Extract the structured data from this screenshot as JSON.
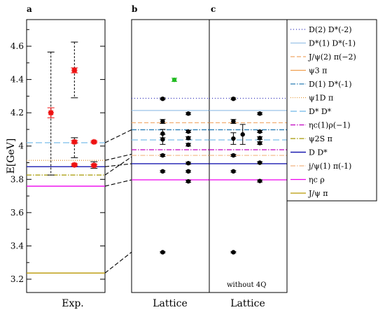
{
  "chart_data": {
    "type": "scatter",
    "ylabel": "E[GeV]",
    "ylim": [
      3.12,
      4.76
    ],
    "yticks": [
      "3.2",
      "3.4",
      "3.6",
      "3.8",
      "4",
      "4.2",
      "4.4",
      "4.6"
    ],
    "grid": false,
    "legend_position": "right",
    "panels": [
      {
        "letter": "a",
        "xlabel": "Exp.",
        "note": ""
      },
      {
        "letter": "b",
        "xlabel": "Lattice",
        "note": ""
      },
      {
        "letter": "c",
        "xlabel": "Lattice",
        "note": "without 4Q"
      }
    ],
    "thresholds": [
      {
        "label": "D(2) D*(-2)",
        "value": 4.287,
        "color": "#3333bb",
        "dash": "1,3",
        "width": 1.3,
        "panels": [
          "b",
          "c"
        ]
      },
      {
        "label": "D*(1) D*(-1)",
        "value": 4.214,
        "color": "#9cc3e8",
        "dash": "",
        "width": 1.3,
        "panels": [
          "b",
          "c"
        ]
      },
      {
        "label": "J/ψ(2) π(−2)",
        "value": 4.14,
        "color": "#f0a868",
        "dash": "6,3",
        "width": 1.2,
        "panels": [
          "b",
          "c"
        ]
      },
      {
        "label": "ψ3 π",
        "value": 4.128,
        "color": "#f0a050",
        "dash": "",
        "width": 1.3,
        "panels": []
      },
      {
        "label": "D(1) D*(-1)",
        "value": 4.098,
        "color": "#2a7db5",
        "dash": "7,2,1.5,2",
        "width": 1.3,
        "panels": [
          "b",
          "c"
        ]
      },
      {
        "label": "ψ1D π",
        "value": 3.914,
        "color": "#e39a3a",
        "dash": "1,2",
        "width": 1.3,
        "panels": [
          "a"
        ]
      },
      {
        "label": "D* D*",
        "value": 4.02,
        "color": "#87c3ec",
        "dash": "9,4",
        "width": 1.4,
        "panels": [
          "a",
          "b",
          "c"
        ]
      },
      {
        "label": "ηc(1)ρ(−1)",
        "value": 3.978,
        "color": "#c000c0",
        "dash": "7,2,1.5,2",
        "width": 1.3,
        "panels": [
          "b",
          "c"
        ]
      },
      {
        "label": "ψ2S π",
        "value": 3.826,
        "color": "#a59800",
        "dash": "7,2,1.5,2",
        "width": 1.3,
        "panels": [
          "a"
        ]
      },
      {
        "label": "D D*",
        "value": 3.876,
        "color": "#1a1ab0",
        "dash": "",
        "width": 1.4,
        "panels": [
          "a",
          "b",
          "c"
        ]
      },
      {
        "label": "j/ψ(1) π(-1)",
        "value": 3.944,
        "color": "#f2b480",
        "dash": "7,2,1.5,2",
        "width": 1.2,
        "panels": [
          "b",
          "c"
        ]
      },
      {
        "label": "ηc ρ",
        "value": 3.759,
        "color": "#ee00ee",
        "dash": "",
        "width": 1.3,
        "panels": [
          "a",
          "b",
          "c"
        ]
      },
      {
        "label": "J/ψ π",
        "value": 3.237,
        "color": "#b89600",
        "dash": "",
        "width": 1.3,
        "panels": [
          "a"
        ]
      }
    ],
    "lattice_level_overrides": {
      "b": {
        "ψ1D π": 3.951,
        "ψ2S π": 3.935,
        "D D*": 3.894,
        "ηc ρ": 3.797,
        "J/ψ π": 3.363,
        "D* D*": 4.037
      },
      "c": {
        "ψ1D π": 3.951,
        "ψ2S π": 3.935,
        "D D*": 3.894,
        "ηc ρ": 3.797,
        "J/ψ π": 3.363,
        "D* D*": 4.037
      }
    },
    "connectors": [
      {
        "from": 3.237,
        "to": 3.363
      },
      {
        "from": 3.759,
        "to": 3.797
      },
      {
        "from": 3.826,
        "to": 3.935
      },
      {
        "from": 3.876,
        "to": 3.894
      },
      {
        "from": 3.914,
        "to": 3.951
      },
      {
        "from": 4.02,
        "to": 4.098
      }
    ],
    "exp_states": [
      {
        "x": 0.31,
        "y": 4.2,
        "err_lo": 0.03,
        "err_hi": 0.03,
        "color": "#ee1111"
      },
      {
        "x": 0.61,
        "y": 4.455,
        "err_lo": 0.015,
        "err_hi": 0.015,
        "color": "#ee1111"
      },
      {
        "x": 0.61,
        "y": 4.025,
        "err_lo": 0.008,
        "err_hi": 0.008,
        "color": "#ee1111"
      },
      {
        "x": 0.61,
        "y": 3.887,
        "err_lo": 0.006,
        "err_hi": 0.006,
        "color": "#ee1111"
      },
      {
        "x": 0.86,
        "y": 4.025,
        "err_lo": 0.005,
        "err_hi": 0.005,
        "color": "#ee1111"
      },
      {
        "x": 0.86,
        "y": 3.884,
        "err_lo": 0.006,
        "err_hi": 0.006,
        "color": "#ee1111"
      }
    ],
    "exp_wide_errors": [
      {
        "x": 0.31,
        "lo": 3.826,
        "hi": 4.565
      },
      {
        "x": 0.61,
        "lo": 4.29,
        "hi": 4.625
      },
      {
        "x": 0.61,
        "lo": 3.93,
        "hi": 4.05
      },
      {
        "x": 0.86,
        "lo": 3.866,
        "hi": 3.906
      }
    ],
    "lattice_b": [
      {
        "x": 0.4,
        "y": 4.284,
        "err": 0.005,
        "color": "#000000"
      },
      {
        "x": 0.4,
        "y": 4.148,
        "err": 0.012,
        "color": "#000000"
      },
      {
        "x": 0.4,
        "y": 4.075,
        "err": 0.025,
        "color": "#000000"
      },
      {
        "x": 0.4,
        "y": 4.04,
        "err": 0.03,
        "color": "#000000"
      },
      {
        "x": 0.4,
        "y": 3.944,
        "err": 0.006,
        "color": "#000000"
      },
      {
        "x": 0.4,
        "y": 3.848,
        "err": 0.005,
        "color": "#000000"
      },
      {
        "x": 0.4,
        "y": 3.362,
        "err": 0.004,
        "color": "#000000"
      },
      {
        "x": 0.55,
        "y": 4.398,
        "err": 0.01,
        "color": "#22bb22"
      },
      {
        "x": 0.73,
        "y": 4.195,
        "err": 0.006,
        "color": "#000000"
      },
      {
        "x": 0.73,
        "y": 4.087,
        "err": 0.006,
        "color": "#000000"
      },
      {
        "x": 0.73,
        "y": 4.048,
        "err": 0.008,
        "color": "#000000"
      },
      {
        "x": 0.73,
        "y": 4.008,
        "err": 0.008,
        "color": "#000000"
      },
      {
        "x": 0.73,
        "y": 3.897,
        "err": 0.006,
        "color": "#000000"
      },
      {
        "x": 0.73,
        "y": 3.848,
        "err": 0.005,
        "color": "#000000"
      },
      {
        "x": 0.73,
        "y": 3.788,
        "err": 0.006,
        "color": "#000000"
      }
    ],
    "lattice_c": [
      {
        "x": 0.31,
        "y": 4.284,
        "err": 0.005,
        "color": "#000000"
      },
      {
        "x": 0.31,
        "y": 4.148,
        "err": 0.012,
        "color": "#000000"
      },
      {
        "x": 0.31,
        "y": 4.045,
        "err": 0.035,
        "color": "#000000"
      },
      {
        "x": 0.31,
        "y": 3.944,
        "err": 0.006,
        "color": "#000000"
      },
      {
        "x": 0.31,
        "y": 3.848,
        "err": 0.005,
        "color": "#000000"
      },
      {
        "x": 0.31,
        "y": 3.362,
        "err": 0.004,
        "color": "#000000"
      },
      {
        "x": 0.43,
        "y": 4.07,
        "err": 0.06,
        "color": "#000000"
      },
      {
        "x": 0.65,
        "y": 4.195,
        "err": 0.006,
        "color": "#000000"
      },
      {
        "x": 0.65,
        "y": 4.087,
        "err": 0.006,
        "color": "#000000"
      },
      {
        "x": 0.65,
        "y": 4.048,
        "err": 0.008,
        "color": "#000000"
      },
      {
        "x": 0.65,
        "y": 4.018,
        "err": 0.008,
        "color": "#000000"
      },
      {
        "x": 0.65,
        "y": 3.9,
        "err": 0.006,
        "color": "#000000"
      },
      {
        "x": 0.65,
        "y": 3.79,
        "err": 0.006,
        "color": "#000000"
      }
    ]
  }
}
